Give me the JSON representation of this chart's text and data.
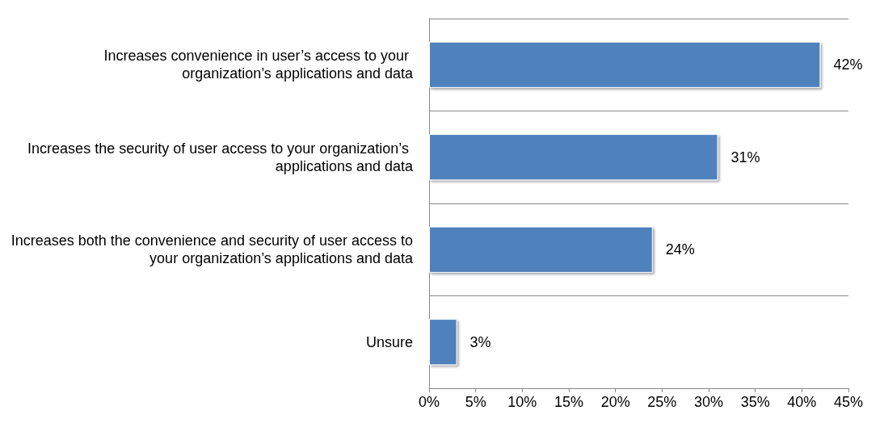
{
  "chart_data": {
    "type": "bar",
    "orientation": "horizontal",
    "categories": [
      "Increases convenience in user’s access to your organization’s applications and data",
      "Increases the security of user access to your organization’s applications and data",
      "Increases both the convenience and security of user access to your organization’s applications and data",
      "Unsure"
    ],
    "values": [
      42,
      31,
      24,
      3
    ],
    "value_labels": [
      "42%",
      "31%",
      "24%",
      "3%"
    ],
    "color": "#4f81bd",
    "xlim": [
      0,
      45
    ],
    "xticks": [
      {
        "value": 0,
        "label": "0%"
      },
      {
        "value": 5,
        "label": "5%"
      },
      {
        "value": 10,
        "label": "10%"
      },
      {
        "value": 15,
        "label": "15%"
      },
      {
        "value": 20,
        "label": "20%"
      },
      {
        "value": 25,
        "label": "25%"
      },
      {
        "value": 30,
        "label": "30%"
      },
      {
        "value": 35,
        "label": "35%"
      },
      {
        "value": 40,
        "label": "40%"
      },
      {
        "value": 45,
        "label": "45%"
      }
    ],
    "grid": "y"
  }
}
